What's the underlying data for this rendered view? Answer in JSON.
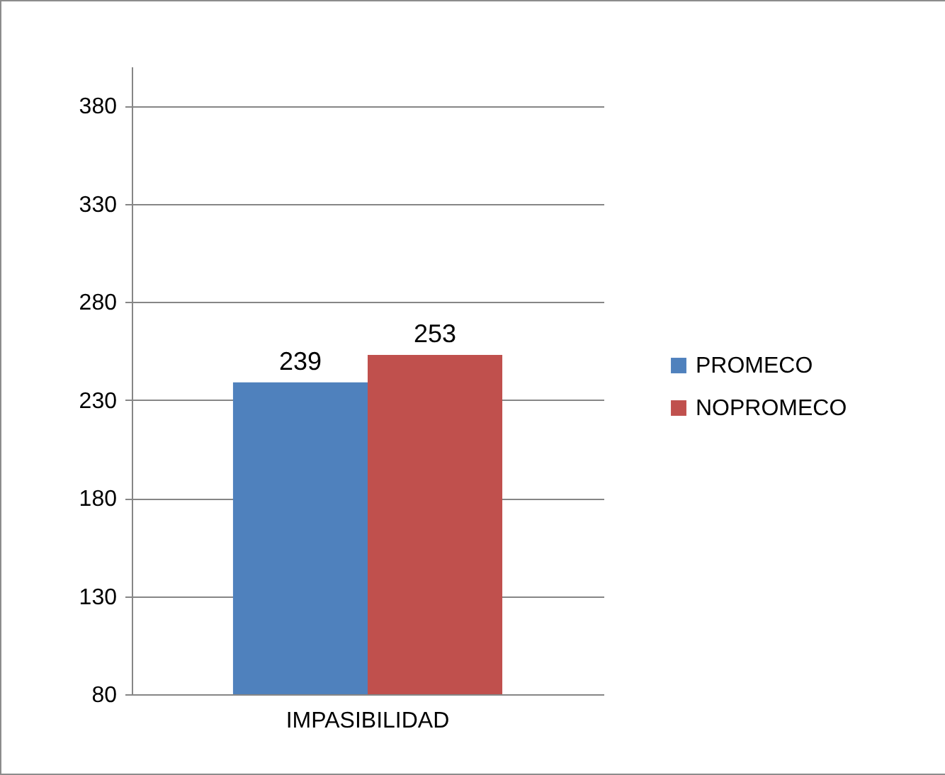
{
  "chart_data": {
    "type": "bar",
    "categories": [
      "IMPASIBILIDAD"
    ],
    "series": [
      {
        "name": "PROMECO",
        "color": "#4f81bd",
        "values": [
          239
        ]
      },
      {
        "name": "NOPROMECO",
        "color": "#c0504d",
        "values": [
          253
        ]
      }
    ],
    "ylim": [
      80,
      400
    ],
    "yticks": [
      80,
      130,
      180,
      230,
      280,
      330,
      380
    ],
    "grid": "y",
    "legend": "right",
    "data_labels": true
  }
}
